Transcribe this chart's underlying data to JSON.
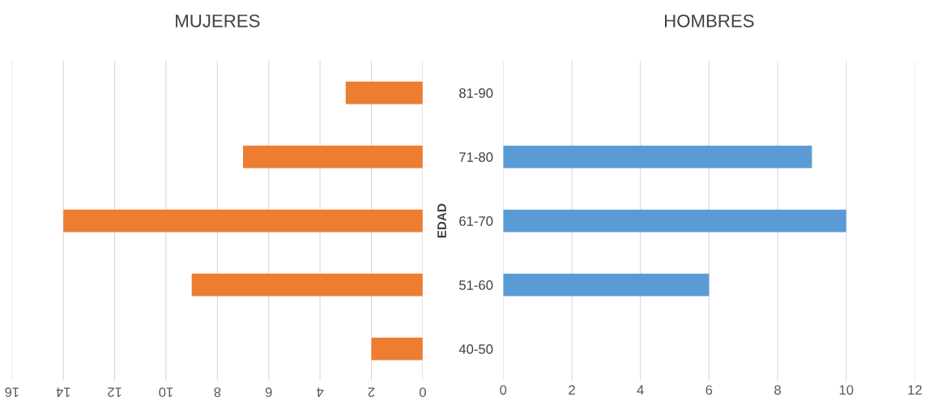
{
  "chart_data": [
    {
      "type": "bar",
      "orientation": "horizontal",
      "title": "MUJERES",
      "ylabel": "EDAD",
      "categories": [
        "81-90",
        "71-80",
        "61-70",
        "51-60",
        "40-50"
      ],
      "series": [
        {
          "color": "#ed7d31",
          "values": [
            3,
            7,
            14,
            9,
            2
          ]
        }
      ],
      "xlim": [
        16,
        0
      ],
      "xticks": [
        0,
        2,
        4,
        6,
        8,
        10,
        12,
        14,
        16
      ],
      "grid": "x"
    },
    {
      "type": "bar",
      "orientation": "horizontal",
      "title": "HOMBRES",
      "categories": [
        null,
        null,
        null,
        null,
        null
      ],
      "series": [
        {
          "color": "#5b9bd5",
          "values": [
            0,
            9,
            10,
            6,
            0
          ]
        }
      ],
      "xlim": [
        0,
        12
      ],
      "xticks": [
        0,
        2,
        4,
        6,
        8,
        10,
        12
      ],
      "grid": "x",
      "tick_labels": "x"
    }
  ]
}
